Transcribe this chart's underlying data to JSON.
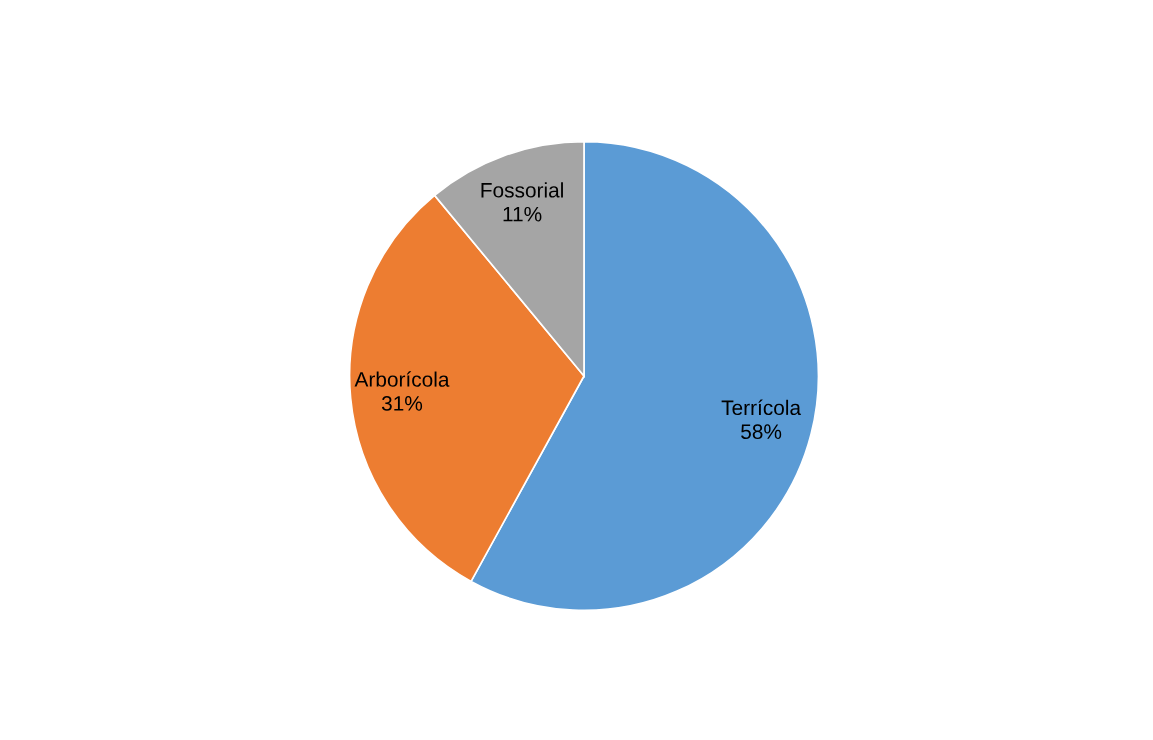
{
  "chart_data": {
    "type": "pie",
    "categories": [
      "Terrícola",
      "Arborícola",
      "Fossorial"
    ],
    "values": [
      58,
      31,
      11
    ],
    "colors": [
      "#5b9bd5",
      "#ed7d31",
      "#a5a5a5"
    ],
    "value_labels": [
      "58%",
      "31%",
      "11%"
    ],
    "legend": false
  }
}
